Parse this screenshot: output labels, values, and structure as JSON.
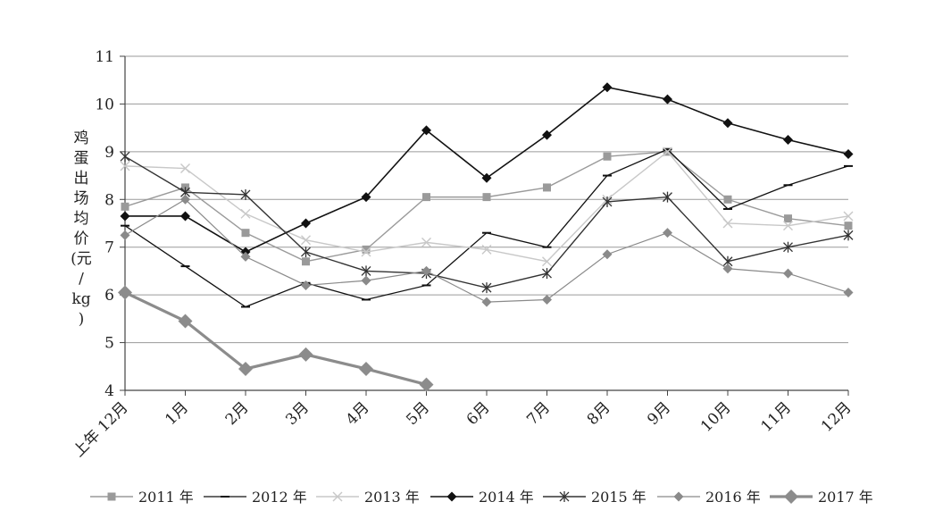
{
  "chart_data": {
    "type": "line",
    "title": "",
    "ylabel": "鸡蛋出场均价(元/kg)",
    "ylabel_lines": [
      "鸡",
      "蛋",
      "出",
      "场",
      "均",
      "价",
      "(元",
      "/",
      "kg",
      ")"
    ],
    "xlabel": "",
    "categories": [
      "上年 12月",
      "1月",
      "2月",
      "3月",
      "4月",
      "5月",
      "6月",
      "7月",
      "8月",
      "9月",
      "10月",
      "11月",
      "12月"
    ],
    "ylim": [
      4,
      11
    ],
    "yticks": [
      "4",
      "5",
      "6",
      "7",
      "8",
      "9",
      "10",
      "11"
    ],
    "grid": true,
    "legend_position": "bottom",
    "series": [
      {
        "name": "2011 年",
        "color": "#9a9a9a",
        "marker": "square",
        "width": 1.4,
        "values": [
          7.85,
          8.25,
          7.3,
          6.7,
          6.95,
          8.05,
          8.05,
          8.25,
          8.9,
          9.0,
          8.0,
          7.6,
          7.45
        ]
      },
      {
        "name": "2012 年",
        "color": "#111111",
        "marker": "dash",
        "width": 1.3,
        "values": [
          7.45,
          6.6,
          5.75,
          6.25,
          5.9,
          6.2,
          7.3,
          7.0,
          8.5,
          9.05,
          7.8,
          8.3,
          8.7
        ]
      },
      {
        "name": "2013 年",
        "color": "#c8c8c8",
        "marker": "x",
        "width": 1.4,
        "values": [
          8.7,
          8.65,
          7.7,
          7.15,
          6.9,
          7.1,
          6.95,
          6.7,
          8.0,
          9.0,
          7.5,
          7.45,
          7.65
        ]
      },
      {
        "name": "2014 年",
        "color": "#111111",
        "marker": "diamond",
        "width": 1.6,
        "values": [
          7.65,
          7.65,
          6.9,
          7.5,
          8.05,
          9.45,
          8.45,
          9.35,
          10.35,
          10.1,
          9.6,
          9.25,
          8.95
        ]
      },
      {
        "name": "2015 年",
        "color": "#333333",
        "marker": "star",
        "width": 1.4,
        "values": [
          8.9,
          8.15,
          8.1,
          6.9,
          6.5,
          6.45,
          6.15,
          6.45,
          7.95,
          8.05,
          6.7,
          7.0,
          7.25
        ]
      },
      {
        "name": "2016 年",
        "color": "#8a8a8a",
        "marker": "diamond",
        "width": 1.2,
        "values": [
          7.25,
          8.0,
          6.8,
          6.2,
          6.3,
          6.5,
          5.85,
          5.9,
          6.85,
          7.3,
          6.55,
          6.45,
          6.05
        ]
      },
      {
        "name": "2017 年",
        "color": "#8c8c8c",
        "marker": "bigdiamond",
        "width": 3.2,
        "values": [
          6.05,
          5.45,
          4.45,
          4.75,
          4.45,
          4.12,
          null,
          null,
          null,
          null,
          null,
          null,
          null
        ]
      }
    ]
  }
}
